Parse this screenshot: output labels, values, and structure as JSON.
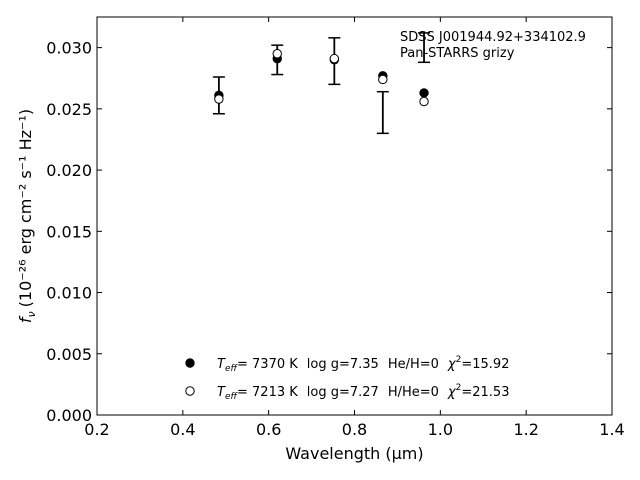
{
  "chart_data": {
    "type": "scatter",
    "xlabel": "Wavelength (μm)",
    "ylabel_prefix": "f",
    "ylabel_sub": "ν",
    "ylabel_units": "(10⁻²⁶ erg cm⁻² s⁻¹ Hz⁻¹)",
    "xlim": [
      0.2,
      1.4
    ],
    "ylim": [
      0.0,
      0.0325
    ],
    "xticks": [
      0.2,
      0.4,
      0.6,
      0.8,
      1.0,
      1.2,
      1.4
    ],
    "xtick_labels": [
      "0.2",
      "0.4",
      "0.6",
      "0.8",
      "1.0",
      "1.2",
      "1.4"
    ],
    "yticks": [
      0.0,
      0.005,
      0.01,
      0.015,
      0.02,
      0.025,
      0.03
    ],
    "ytick_labels": [
      "0.000",
      "0.005",
      "0.010",
      "0.015",
      "0.020",
      "0.025",
      "0.030"
    ],
    "annotation": [
      "SDSS J001944.92+334102.9",
      "Pan-STARRS grizy"
    ],
    "observed": {
      "x": [
        0.484,
        0.62,
        0.753,
        0.866,
        0.962
      ],
      "y": [
        0.0261,
        0.029,
        0.0289,
        0.0247,
        0.03
      ],
      "err": [
        0.0015,
        0.0012,
        0.0019,
        0.0017,
        0.0012
      ]
    },
    "series": [
      {
        "name": "He/H=0",
        "marker": "filled-circle",
        "x": [
          0.484,
          0.62,
          0.753,
          0.866,
          0.962
        ],
        "y": [
          0.0261,
          0.0291,
          0.029,
          0.0277,
          0.0263
        ],
        "legend": {
          "teff_label": "T",
          "teff_sub": "eff",
          "teff_value": "=  7370 K",
          "logg": "log g=7.35",
          "comp": "He/H=0",
          "chi_label": "χ",
          "chi_sup": "2",
          "chi_value": "=15.92"
        }
      },
      {
        "name": "H/He=0",
        "marker": "open-circle",
        "x": [
          0.484,
          0.62,
          0.753,
          0.866,
          0.962
        ],
        "y": [
          0.0258,
          0.0295,
          0.0291,
          0.0274,
          0.0256
        ],
        "legend": {
          "teff_label": "T",
          "teff_sub": "eff",
          "teff_value": "=  7213 K",
          "logg": "log g=7.27",
          "comp": "H/He=0",
          "chi_label": "χ",
          "chi_sup": "2",
          "chi_value": "=21.53"
        }
      }
    ],
    "colors": {
      "ink": "#000000",
      "background": "#ffffff"
    }
  }
}
